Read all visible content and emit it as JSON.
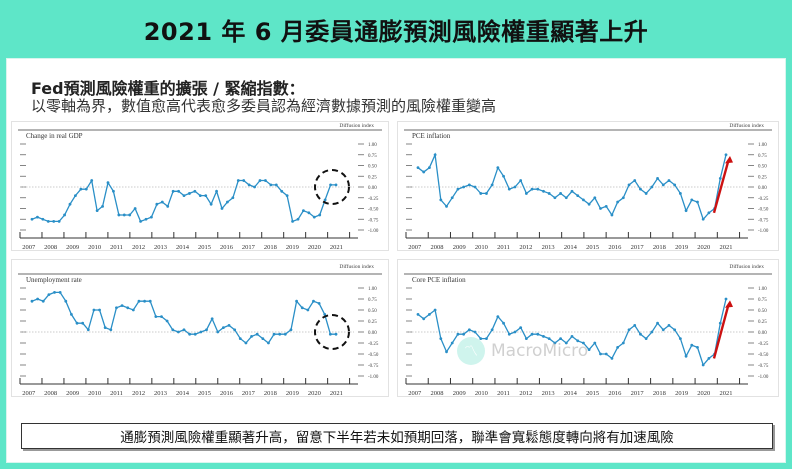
{
  "title": "2021 年 6 月委員通膨預測風險權重顯著上升",
  "subtitle_line1": "Fed預測風險權重的擴張 / 緊縮指數：",
  "subtitle_line2": "以零軸為界，數值愈高代表愈多委員認為經濟數據預測的風險權重變高",
  "note": "通膨預測風險權重顯著升高，留意下半年若未如預期回落，聯準會寬鬆態度轉向將有加速風險",
  "watermark": "MacroMicro",
  "colors": {
    "teal_bg": "#5ee6c8",
    "line": "#2a8fc7",
    "arrow": "#cc1111",
    "circle": "#111111"
  },
  "chart_data": [
    {
      "type": "line",
      "title": "Change in real GDP",
      "ylabel": "Diffusion index",
      "ylim": [
        -1.0,
        1.0
      ],
      "yticks": [
        "1.00",
        "0.75",
        "0.50",
        "0.25",
        "0.00",
        "-0.25",
        "-0.50",
        "-0.75",
        "-1.00"
      ],
      "xticks": [
        "2007",
        "2008",
        "2009",
        "2010",
        "2011",
        "2012",
        "2013",
        "2014",
        "2015",
        "2016",
        "2017",
        "2018",
        "2019",
        "2020",
        "2021"
      ],
      "annotation": "dashed-circle around 2021 values",
      "values": [
        -0.75,
        -0.7,
        -0.75,
        -0.8,
        -0.8,
        -0.8,
        -0.65,
        -0.4,
        -0.2,
        -0.05,
        -0.05,
        0.15,
        -0.55,
        -0.45,
        0.1,
        -0.1,
        -0.65,
        -0.65,
        -0.65,
        -0.5,
        -0.8,
        -0.75,
        -0.7,
        -0.4,
        -0.35,
        -0.45,
        -0.1,
        -0.1,
        -0.2,
        -0.15,
        -0.1,
        -0.2,
        -0.2,
        -0.4,
        -0.1,
        -0.5,
        -0.35,
        -0.25,
        0.15,
        0.15,
        0.05,
        0.0,
        0.15,
        0.15,
        0.05,
        0.05,
        -0.1,
        -0.2,
        -0.8,
        -0.75,
        -0.55,
        -0.6,
        -0.7,
        -0.65,
        -0.3,
        0.05,
        0.05
      ]
    },
    {
      "type": "line",
      "title": "PCE inflation",
      "ylabel": "Diffusion index",
      "ylim": [
        -1.0,
        1.0
      ],
      "yticks": [
        "1.00",
        "0.75",
        "0.50",
        "0.25",
        "0.00",
        "-0.25",
        "-0.50",
        "-0.75",
        "-1.00"
      ],
      "xticks": [
        "2007",
        "2008",
        "2009",
        "2010",
        "2011",
        "2012",
        "2013",
        "2014",
        "2015",
        "2016",
        "2017",
        "2018",
        "2019",
        "2020",
        "2021"
      ],
      "annotation": "red upward arrow near 2021",
      "values": [
        0.45,
        0.35,
        0.45,
        0.75,
        -0.3,
        -0.45,
        -0.25,
        -0.05,
        0.0,
        0.05,
        0.0,
        -0.15,
        -0.15,
        0.05,
        0.45,
        0.25,
        -0.05,
        0.0,
        0.15,
        -0.15,
        -0.05,
        -0.05,
        -0.1,
        -0.15,
        -0.25,
        -0.15,
        -0.25,
        -0.1,
        -0.2,
        -0.3,
        -0.4,
        -0.25,
        -0.5,
        -0.45,
        -0.65,
        -0.35,
        -0.25,
        0.05,
        0.15,
        -0.05,
        -0.15,
        0.0,
        0.2,
        0.05,
        0.15,
        0.05,
        -0.15,
        -0.55,
        -0.3,
        -0.35,
        -0.75,
        -0.6,
        -0.5,
        0.2,
        0.75
      ]
    },
    {
      "type": "line",
      "title": "Unemployment rate",
      "ylabel": "Diffusion index",
      "ylim": [
        -1.0,
        1.0
      ],
      "yticks": [
        "1.00",
        "0.75",
        "0.50",
        "0.25",
        "0.00",
        "-0.25",
        "-0.50",
        "-0.75",
        "-1.00"
      ],
      "xticks": [
        "2007",
        "2008",
        "2009",
        "2010",
        "2011",
        "2012",
        "2013",
        "2014",
        "2015",
        "2016",
        "2017",
        "2018",
        "2019",
        "2020",
        "2021"
      ],
      "annotation": "dashed-circle around 2021 values",
      "values": [
        0.7,
        0.75,
        0.7,
        0.85,
        0.9,
        0.9,
        0.7,
        0.4,
        0.2,
        0.2,
        0.05,
        0.5,
        0.5,
        0.1,
        0.05,
        0.55,
        0.6,
        0.55,
        0.5,
        0.7,
        0.7,
        0.7,
        0.35,
        0.35,
        0.25,
        0.05,
        0.0,
        0.05,
        -0.05,
        -0.05,
        0.0,
        0.05,
        0.3,
        0.0,
        0.1,
        0.15,
        0.05,
        -0.15,
        -0.25,
        -0.1,
        -0.05,
        -0.15,
        -0.25,
        -0.05,
        -0.05,
        -0.05,
        0.05,
        0.7,
        0.55,
        0.5,
        0.7,
        0.65,
        0.4,
        -0.05,
        -0.05
      ]
    },
    {
      "type": "line",
      "title": "Core PCE inflation",
      "ylabel": "Diffusion index",
      "ylim": [
        -1.0,
        1.0
      ],
      "yticks": [
        "1.00",
        "0.75",
        "0.50",
        "0.25",
        "0.00",
        "-0.25",
        "-0.50",
        "-0.75",
        "-1.00"
      ],
      "xticks": [
        "2007",
        "2008",
        "2009",
        "2010",
        "2011",
        "2012",
        "2013",
        "2014",
        "2015",
        "2016",
        "2017",
        "2018",
        "2019",
        "2020",
        "2021"
      ],
      "annotation": "red upward arrow near 2021",
      "values": [
        0.4,
        0.3,
        0.4,
        0.5,
        -0.15,
        -0.45,
        -0.25,
        -0.05,
        -0.05,
        0.05,
        0.0,
        -0.15,
        -0.15,
        0.05,
        0.35,
        0.2,
        -0.05,
        0.0,
        0.1,
        -0.15,
        -0.05,
        -0.05,
        -0.1,
        -0.15,
        -0.25,
        -0.15,
        -0.25,
        -0.1,
        -0.2,
        -0.25,
        -0.4,
        -0.25,
        -0.5,
        -0.5,
        -0.6,
        -0.35,
        -0.25,
        0.05,
        0.15,
        -0.05,
        -0.15,
        0.0,
        0.2,
        0.05,
        0.15,
        0.05,
        -0.15,
        -0.55,
        -0.3,
        -0.35,
        -0.75,
        -0.6,
        -0.5,
        0.2,
        0.75
      ]
    }
  ]
}
